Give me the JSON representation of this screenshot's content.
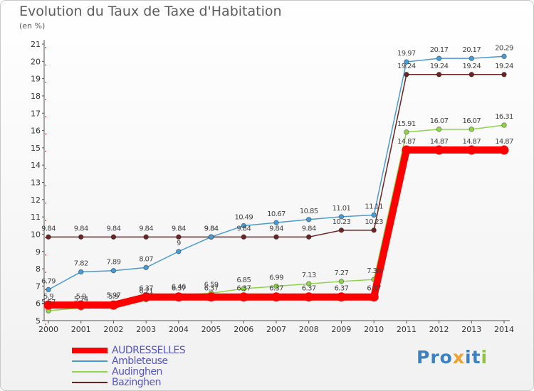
{
  "chart_data": {
    "type": "line",
    "title": "Evolution du Taux de Taxe d'Habitation",
    "subtitle": "(en %)",
    "x": [
      2000,
      2001,
      2002,
      2003,
      2004,
      2005,
      2006,
      2007,
      2008,
      2009,
      2010,
      2011,
      2012,
      2013,
      2014
    ],
    "ylim": [
      5,
      21
    ],
    "yticks": [
      5,
      6,
      7,
      8,
      9,
      10,
      11,
      12,
      13,
      14,
      15,
      16,
      17,
      18,
      19,
      20,
      21
    ],
    "grid": false,
    "legend_position": "bottom-left",
    "series": [
      {
        "name": "AUDRESSELLES",
        "color": "#ff0000",
        "values": [
          5.9,
          5.9,
          5.9,
          6.37,
          6.37,
          6.37,
          6.37,
          6.37,
          6.37,
          6.37,
          6.37,
          14.87,
          14.87,
          14.87,
          14.87
        ],
        "labels": [
          "5.9",
          "5.9",
          "5.9",
          "6.37",
          "6.37",
          "6.37",
          "6.37",
          "6.37",
          "6.37",
          "6.37",
          "6.37",
          "14.87",
          "14.87",
          "14.87",
          "14.87"
        ]
      },
      {
        "name": "Ambleteuse",
        "color": "#4a9bd4",
        "values": [
          6.79,
          7.82,
          7.89,
          8.07,
          9.0,
          9.84,
          10.49,
          10.67,
          10.85,
          11.01,
          11.11,
          19.97,
          20.17,
          20.17,
          20.29
        ],
        "labels": [
          "6.79",
          "7.82",
          "7.89",
          "8.07",
          "9",
          "9.84",
          "10.49",
          "10.67",
          "10.85",
          "11.01",
          "11.11",
          "19.97",
          "20.17",
          "20.17",
          "20.29"
        ]
      },
      {
        "name": "Audinghen",
        "color": "#8fd44a",
        "values": [
          5.57,
          5.74,
          5.97,
          6.21,
          6.46,
          6.59,
          6.85,
          6.99,
          7.13,
          7.27,
          7.38,
          15.91,
          16.07,
          16.07,
          16.31
        ],
        "labels": [
          "5.57",
          "5.74",
          "5.97",
          "6.21",
          "6.46",
          "6.59",
          "6.85",
          "6.99",
          "7.13",
          "7.27",
          "7.38",
          "15.91",
          "16.07",
          "16.07",
          "16.31"
        ]
      },
      {
        "name": "Bazinghen",
        "color": "#6b2424",
        "values": [
          9.84,
          9.84,
          9.84,
          9.84,
          9.84,
          9.84,
          9.84,
          9.84,
          9.84,
          10.23,
          10.23,
          19.24,
          19.24,
          19.24,
          19.24
        ],
        "labels": [
          "9.84",
          "9.84",
          "9.84",
          "9.84",
          "9.84",
          "9.84",
          "9.84",
          "9.84",
          "9.84",
          "10.23",
          "10.23",
          "19.24",
          "19.24",
          "19.24",
          "19.24"
        ]
      }
    ]
  },
  "legend": {
    "items": [
      {
        "label": "AUDRESSELLES",
        "color": "#ff0000"
      },
      {
        "label": "Ambleteuse",
        "color": "#4a9bd4"
      },
      {
        "label": "Audinghen",
        "color": "#8fd44a"
      },
      {
        "label": "Bazinghen",
        "color": "#6b2424"
      }
    ]
  },
  "logo": {
    "letters": [
      {
        "ch": "P",
        "color": "#3b82c4"
      },
      {
        "ch": "r",
        "color": "#3b82c4"
      },
      {
        "ch": "o",
        "color": "#3b82c4"
      },
      {
        "ch": "x",
        "color": "#f0a030"
      },
      {
        "ch": "i",
        "color": "#3b82c4"
      },
      {
        "ch": "t",
        "color": "#3b82c4"
      },
      {
        "ch": "i",
        "color": "#8fc43c"
      }
    ]
  }
}
